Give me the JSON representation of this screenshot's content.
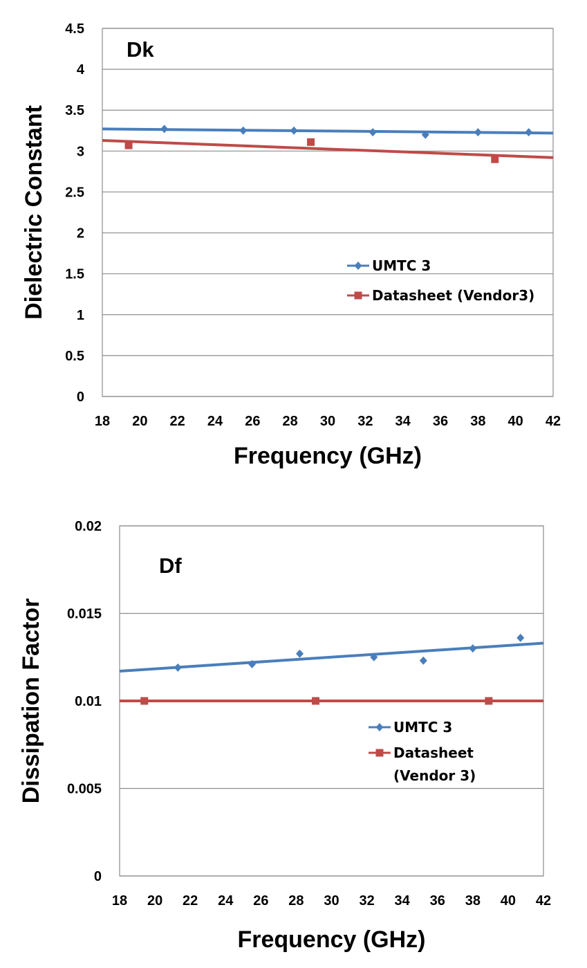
{
  "chart_data": [
    {
      "type": "scatter",
      "title": "",
      "panel_label": "Dk",
      "xlabel": "Frequency (GHz)",
      "ylabel": "Dielectric Constant",
      "xlim": [
        18,
        42
      ],
      "ylim": [
        0,
        4.5
      ],
      "xticks": [
        "18",
        "20",
        "22",
        "24",
        "26",
        "28",
        "30",
        "32",
        "34",
        "36",
        "38",
        "40",
        "42"
      ],
      "yticks": [
        "0",
        "0.5",
        "1",
        "1.5",
        "2",
        "2.5",
        "3",
        "3.5",
        "4",
        "4.5"
      ],
      "grid": "horizontal",
      "legend_position": "center-right",
      "series": [
        {
          "name": "UMTC 3",
          "marker": "diamond",
          "color": "#4a7ebb",
          "x": [
            21.3,
            25.5,
            28.2,
            32.4,
            35.2,
            38.0,
            40.7
          ],
          "y": [
            3.27,
            3.25,
            3.25,
            3.23,
            3.2,
            3.23,
            3.23
          ],
          "trendline": [
            [
              18,
              3.27
            ],
            [
              42,
              3.22
            ]
          ]
        },
        {
          "name": "Datasheet (Vendor3)",
          "marker": "square",
          "color": "#be4b48",
          "x": [
            19.4,
            29.1,
            38.9
          ],
          "y": [
            3.07,
            3.11,
            2.9
          ],
          "trendline": [
            [
              18,
              3.13
            ],
            [
              42,
              2.92
            ]
          ]
        }
      ]
    },
    {
      "type": "scatter",
      "title": "",
      "panel_label": "Df",
      "xlabel": "Frequency (GHz)",
      "ylabel": "Dissipation Factor",
      "xlim": [
        18,
        42
      ],
      "ylim": [
        0,
        0.02
      ],
      "xticks": [
        "18",
        "20",
        "22",
        "24",
        "26",
        "28",
        "30",
        "32",
        "34",
        "36",
        "38",
        "40",
        "42"
      ],
      "yticks": [
        "0",
        "0.005",
        "0.01",
        "0.015",
        "0.02"
      ],
      "grid": "horizontal",
      "legend_position": "center-right",
      "series": [
        {
          "name": "UMTC 3",
          "marker": "diamond",
          "color": "#4a7ebb",
          "x": [
            21.3,
            25.5,
            28.2,
            32.4,
            35.2,
            38.0,
            40.7
          ],
          "y": [
            0.0119,
            0.0121,
            0.0127,
            0.0125,
            0.0123,
            0.013,
            0.0136
          ],
          "trendline": [
            [
              18,
              0.0117
            ],
            [
              42,
              0.0133
            ]
          ]
        },
        {
          "name": "Datasheet (Vendor 3)",
          "name_lines": [
            "Datasheet",
            "(Vendor 3)"
          ],
          "marker": "square",
          "color": "#be4b48",
          "x": [
            19.4,
            29.1,
            38.9
          ],
          "y": [
            0.01,
            0.01,
            0.01
          ],
          "trendline": [
            [
              18,
              0.01
            ],
            [
              42,
              0.01
            ]
          ]
        }
      ]
    }
  ]
}
